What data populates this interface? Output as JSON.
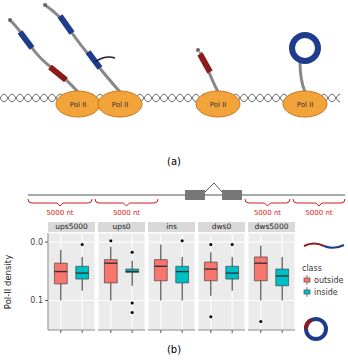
{
  "figure": {
    "panel_labels": [
      "(a)",
      "(b)"
    ],
    "pol_labels": [
      "Pol II",
      "Pol II",
      "Pol II",
      "Pol II"
    ],
    "gene_segments": [
      "5000 nt",
      "5000 nt",
      "5000 nt",
      "5000 nt"
    ]
  },
  "chart_data": {
    "type": "boxplot",
    "ylabel": "Pol-II density",
    "log": "y",
    "grid": true,
    "legend": "right",
    "legend_title": "class",
    "tick_labels": "y",
    "ylim": [
      0.32,
      0.007
    ],
    "yticks": [
      {
        "value": 0.01,
        "label": "0.0"
      },
      {
        "value": 0.1,
        "label": "0.1"
      }
    ],
    "series": [
      {
        "name": "outside",
        "color": "#F8766D"
      },
      {
        "name": "inside",
        "color": "#00BFC4"
      }
    ],
    "facets": [
      {
        "name": "ups5000",
        "boxes": [
          {
            "min": 0.0136,
            "q1": 0.023,
            "median": 0.032,
            "q3": 0.052,
            "max": 0.1,
            "outliers": []
          },
          {
            "min": 0.018,
            "q1": 0.026,
            "median": 0.034,
            "q3": 0.043,
            "max": 0.068,
            "outliers": [
              0.011
            ]
          }
        ]
      },
      {
        "name": "ups0",
        "boxes": [
          {
            "min": 0.012,
            "q1": 0.02,
            "median": 0.023,
            "q3": 0.05,
            "max": 0.1,
            "outliers": [
              0.0095
            ]
          },
          {
            "min": 0.021,
            "q1": 0.029,
            "median": 0.032,
            "q3": 0.033,
            "max": 0.056,
            "outliers": [
              0.015,
              0.11,
              0.16
            ]
          }
        ]
      },
      {
        "name": "ins",
        "boxes": [
          {
            "min": 0.011,
            "q1": 0.02,
            "median": 0.026,
            "q3": 0.046,
            "max": 0.1,
            "outliers": []
          },
          {
            "min": 0.018,
            "q1": 0.026,
            "median": 0.032,
            "q3": 0.05,
            "max": 0.1,
            "outliers": [
              0.0095
            ]
          }
        ]
      },
      {
        "name": "dws0",
        "boxes": [
          {
            "min": 0.015,
            "q1": 0.022,
            "median": 0.029,
            "q3": 0.046,
            "max": 0.083,
            "outliers": [
              0.011,
              0.19
            ]
          },
          {
            "min": 0.018,
            "q1": 0.026,
            "median": 0.034,
            "q3": 0.043,
            "max": 0.068,
            "outliers": [
              0.011
            ]
          }
        ]
      },
      {
        "name": "dws5000",
        "boxes": [
          {
            "min": 0.0115,
            "q1": 0.018,
            "median": 0.023,
            "q3": 0.046,
            "max": 0.1,
            "outliers": [
              0.23
            ]
          },
          {
            "min": 0.018,
            "q1": 0.029,
            "median": 0.038,
            "q3": 0.056,
            "max": 0.1,
            "outliers": []
          }
        ]
      }
    ]
  }
}
